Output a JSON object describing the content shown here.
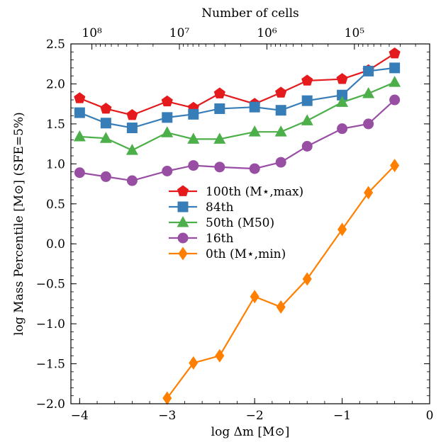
{
  "chart_data": {
    "type": "line",
    "xlabel": "log Δm [M⊙]",
    "ylabel": "log Mass Percentile [M⊙] (SFE=5%)",
    "top_axis_label": "Number of cells",
    "top_ticks": [
      {
        "x": -3.86,
        "label": "10⁸"
      },
      {
        "x": -2.86,
        "label": "10⁷"
      },
      {
        "x": -1.86,
        "label": "10⁶"
      },
      {
        "x": -0.86,
        "label": "10⁵"
      }
    ],
    "xlim": [
      -4.1,
      0
    ],
    "ylim": [
      -2.0,
      2.5
    ],
    "x_ticks": [
      -4,
      -3,
      -2,
      -1,
      0
    ],
    "x_tick_labels": [
      "−4",
      "−3",
      "−2",
      "−1",
      "0"
    ],
    "y_ticks": [
      -2.0,
      -1.5,
      -1.0,
      -0.5,
      0.0,
      0.5,
      1.0,
      1.5,
      2.0,
      2.5
    ],
    "y_tick_labels": [
      "−2.0",
      "−1.5",
      "−1.0",
      "−0.5",
      "0.0",
      "0.5",
      "1.0",
      "1.5",
      "2.0",
      "2.5"
    ],
    "grid": false,
    "legend_position": "center",
    "x": [
      -4.0,
      -3.7,
      -3.4,
      -3.0,
      -2.7,
      -2.4,
      -2.0,
      -1.7,
      -1.4,
      -1.0,
      -0.7,
      -0.4
    ],
    "series": [
      {
        "name": "100th (M⋆,max)",
        "color": "#e41a1c",
        "marker": "pentagon",
        "values": [
          1.82,
          1.69,
          1.61,
          1.78,
          1.7,
          1.88,
          1.75,
          1.89,
          2.04,
          2.06,
          2.17,
          2.38
        ]
      },
      {
        "name": "84th",
        "color": "#377eb8",
        "marker": "square",
        "values": [
          1.64,
          1.51,
          1.45,
          1.58,
          1.62,
          1.69,
          1.71,
          1.67,
          1.79,
          1.86,
          2.16,
          2.2
        ]
      },
      {
        "name": "50th (M50)",
        "color": "#4daf4a",
        "marker": "triangle",
        "values": [
          1.34,
          1.32,
          1.17,
          1.39,
          1.31,
          1.31,
          1.4,
          1.4,
          1.54,
          1.77,
          1.88,
          2.02
        ]
      },
      {
        "name": "16th",
        "color": "#984ea3",
        "marker": "circle",
        "values": [
          0.89,
          0.84,
          0.79,
          0.91,
          0.98,
          0.96,
          0.94,
          1.02,
          1.22,
          1.44,
          1.5,
          1.8
        ]
      },
      {
        "name": "0th (M⋆,min)",
        "color": "#ff7f00",
        "marker": "diamond",
        "values": [
          null,
          null,
          null,
          -1.93,
          -1.49,
          -1.4,
          -0.66,
          -0.79,
          -0.44,
          0.18,
          0.64,
          0.98
        ]
      }
    ]
  }
}
